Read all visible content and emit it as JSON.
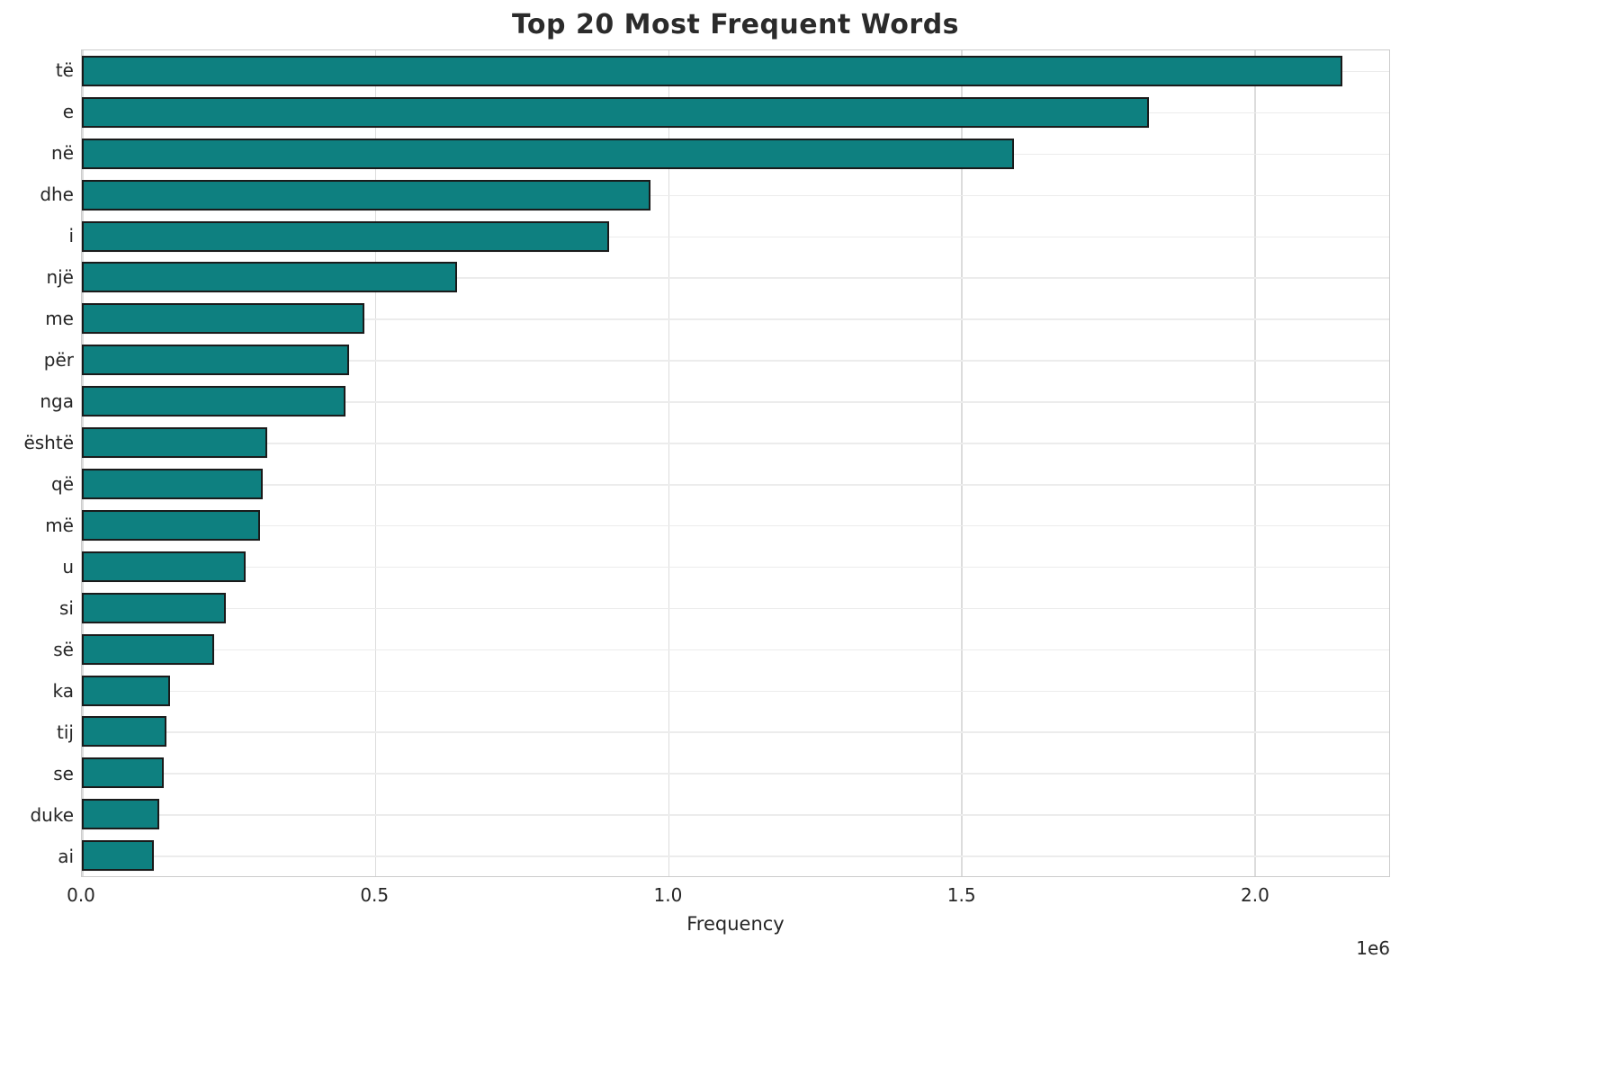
{
  "chart_data": {
    "type": "bar",
    "orientation": "horizontal",
    "title": "Top 20 Most Frequent Words",
    "xlabel": "Frequency",
    "ylabel": "",
    "categories": [
      "të",
      "e",
      "në",
      "dhe",
      "i",
      "një",
      "me",
      "për",
      "nga",
      "është",
      "që",
      "më",
      "u",
      "si",
      "së",
      "ka",
      "tij",
      "se",
      "duke",
      "ai"
    ],
    "values": [
      2150000,
      1820000,
      1590000,
      970000,
      900000,
      640000,
      482000,
      456000,
      450000,
      316000,
      309000,
      304000,
      280000,
      245000,
      226000,
      150000,
      145000,
      139000,
      132000,
      123000
    ],
    "xlim": [
      0,
      2230000
    ],
    "xticks": [
      0,
      500000,
      1000000,
      1500000,
      2000000
    ],
    "xtick_labels": [
      "0.0",
      "0.5",
      "1.0",
      "1.5",
      "2.0"
    ],
    "offset_label": "1e6",
    "grid": true,
    "legend": false,
    "bar_color": "#0e8080",
    "bar_edge_color": "#1a1a1a",
    "grid_color": "#dcdcdc",
    "background_color": "#ffffff"
  }
}
